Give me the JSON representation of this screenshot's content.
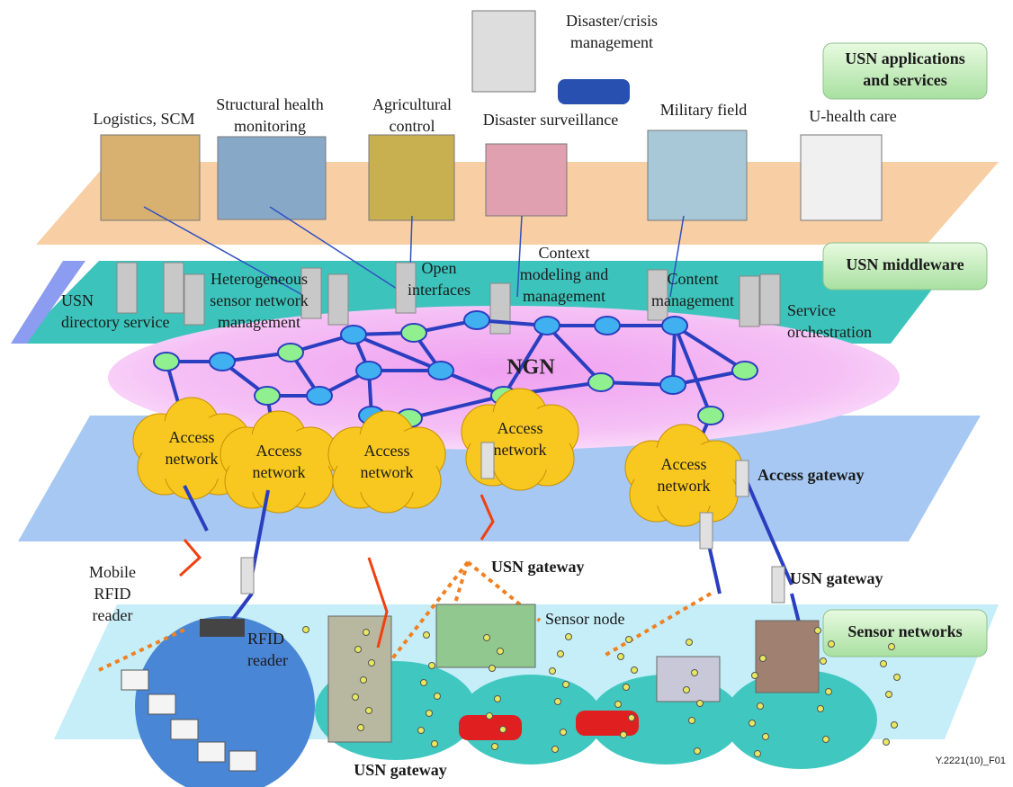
{
  "layers": {
    "applications": [
      "USN applications",
      "and services"
    ],
    "middleware": [
      "USN middleware"
    ],
    "sensor_networks": [
      "Sensor networks"
    ]
  },
  "applications": [
    [
      "Disaster/crisis",
      "management"
    ],
    [
      "Logistics, SCM"
    ],
    [
      "Structural health",
      "monitoring"
    ],
    [
      "Agricultural",
      "control"
    ],
    [
      "Disaster surveillance"
    ],
    [
      "Military field"
    ],
    [
      "U-health care"
    ]
  ],
  "middleware": [
    [
      "USN",
      "directory service"
    ],
    [
      "Heterogeneous",
      "sensor network",
      "management"
    ],
    [
      "Open",
      "interfaces"
    ],
    [
      "Context",
      "modeling and",
      "management"
    ],
    [
      "Content",
      "management"
    ],
    [
      "Service",
      "orchestration"
    ]
  ],
  "core_network": "NGN",
  "access_networks": [
    [
      "Access",
      "network"
    ],
    [
      "Access",
      "network"
    ],
    [
      "Access",
      "network"
    ],
    [
      "Access",
      "network"
    ],
    [
      "Access",
      "network"
    ]
  ],
  "access_gateway": "Access gateway",
  "sensor_layer": {
    "mobile_rfid_reader": [
      "Mobile",
      "RFID",
      "reader"
    ],
    "rfid_reader": [
      "RFID",
      "reader"
    ],
    "usn_gateways": [
      "USN gateway",
      "USN gateway",
      "USN gateway"
    ],
    "sensor_node": "Sensor node"
  },
  "figure_id": "Y.2221(10)_F01"
}
